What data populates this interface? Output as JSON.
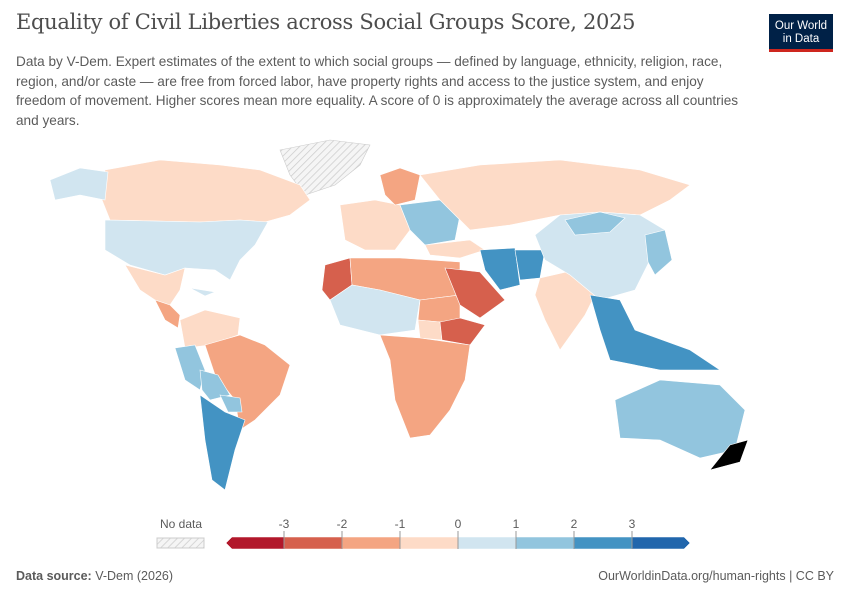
{
  "header": {
    "title": "Equality of Civil Liberties across Social Groups Score, 2025",
    "subtitle": "Data by V-Dem. Expert estimates of the extent to which social groups — defined by language, ethnicity, religion, race, region, and/or caste — are free from forced labor, have property rights and access to the justice system, and enjoy freedom of movement. Higher scores mean more equality. A score of 0 is approximately the average across all countries and years.",
    "logo": "Our World in Data"
  },
  "legend": {
    "no_data_label": "No data",
    "ticks": [
      "-3",
      "-2",
      "-1",
      "0",
      "1",
      "2",
      "3"
    ],
    "bin_colors": [
      "#b2182b",
      "#d6604d",
      "#f4a582",
      "#fddbc7",
      "#d1e5f0",
      "#92c5de",
      "#4393c3",
      "#2166ac"
    ],
    "no_data_color": "#e0e0e0"
  },
  "map": {
    "region_scores": [
      -0.5,
      0.5,
      0.5,
      -0.5,
      -1.5,
      0.5,
      -0.5,
      1.5,
      -1.5,
      1.5,
      1.5,
      2.5,
      -0.5,
      -1.2,
      1.5,
      -0.5,
      -0.5,
      -2.5,
      -1.2,
      0.5,
      -1.2,
      -0.5,
      -2.5,
      -1.2,
      -2.5,
      2.5,
      2.5,
      -0.5,
      0.5,
      1.5,
      1.5,
      2.5,
      1.5
    ]
  },
  "footer": {
    "source_label": "Data source:",
    "source": "V-Dem (2026)",
    "url": "OurWorldinData.org/human-rights | CC BY"
  }
}
